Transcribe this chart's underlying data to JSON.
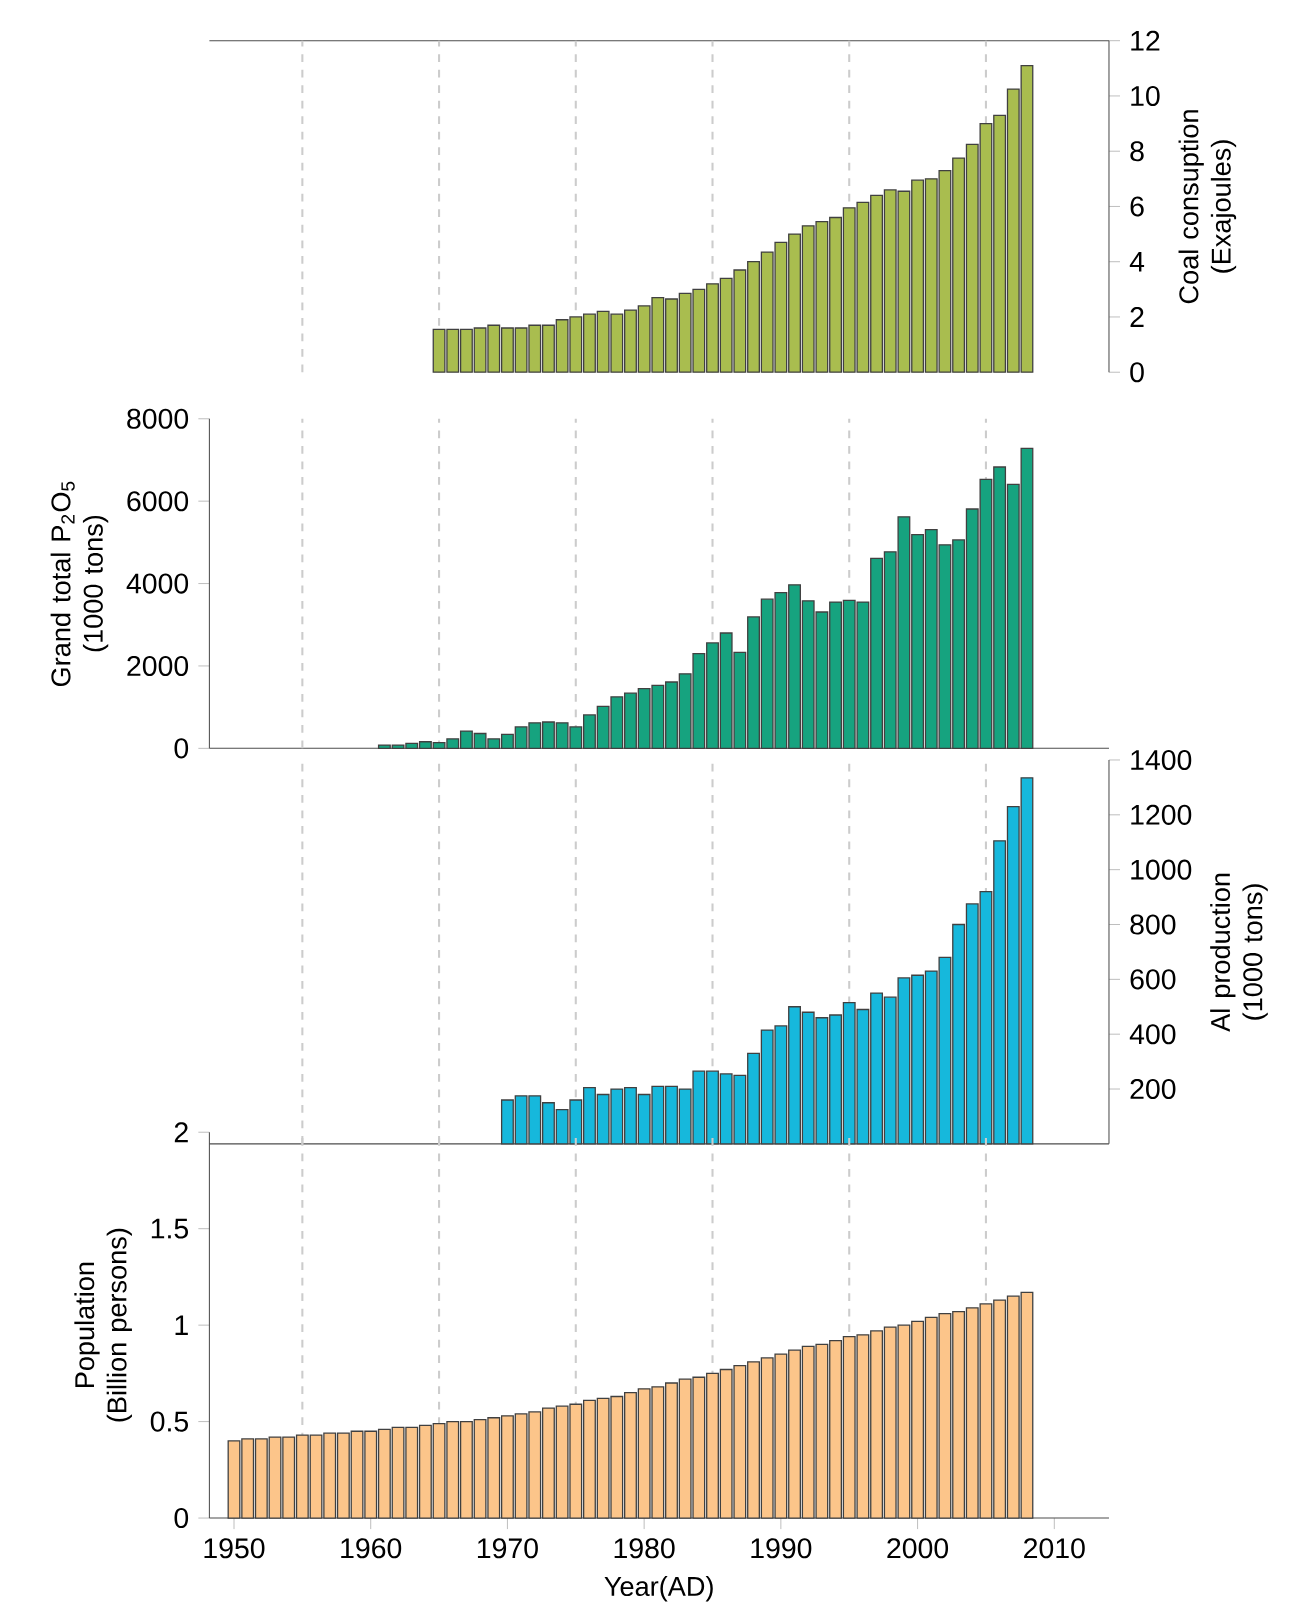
{
  "chart_data": [
    {
      "type": "bar",
      "ylabel": "Coal consuption (Exajoules)",
      "color": "#a9bd4f",
      "xlim": [
        1948.2,
        2014
      ],
      "ylim": [
        0,
        12
      ],
      "yticks": [
        0,
        2,
        4,
        6,
        8,
        10,
        12
      ],
      "tick_labels": "y",
      "x": [
        1965,
        1966,
        1967,
        1968,
        1969,
        1970,
        1971,
        1972,
        1973,
        1974,
        1975,
        1976,
        1977,
        1978,
        1979,
        1980,
        1981,
        1982,
        1983,
        1984,
        1985,
        1986,
        1987,
        1988,
        1989,
        1990,
        1991,
        1992,
        1993,
        1994,
        1995,
        1996,
        1997,
        1998,
        1999,
        2000,
        2001,
        2002,
        2003,
        2004,
        2005,
        2006,
        2007,
        2008
      ],
      "values": [
        1.55,
        1.55,
        1.55,
        1.6,
        1.7,
        1.6,
        1.6,
        1.7,
        1.7,
        1.9,
        2.0,
        2.1,
        2.2,
        2.1,
        2.25,
        2.4,
        2.7,
        2.65,
        2.85,
        3.0,
        3.2,
        3.4,
        3.7,
        4.0,
        4.35,
        4.7,
        5.0,
        5.3,
        5.45,
        5.6,
        5.95,
        6.15,
        6.4,
        6.6,
        6.55,
        6.95,
        7.0,
        7.3,
        7.75,
        8.25,
        9.0,
        9.3,
        10.25,
        11.1
      ],
      "ref_lines": [
        {
          "axis": "x",
          "value": 1955,
          "color": "#cccccc",
          "line_style": "dashed"
        },
        {
          "axis": "x",
          "value": 1965,
          "color": "#cccccc",
          "line_style": "dashed"
        },
        {
          "axis": "x",
          "value": 1975,
          "color": "#cccccc",
          "line_style": "dashed"
        },
        {
          "axis": "x",
          "value": 1985,
          "color": "#cccccc",
          "line_style": "dashed"
        },
        {
          "axis": "x",
          "value": 1995,
          "color": "#cccccc",
          "line_style": "dashed"
        },
        {
          "axis": "x",
          "value": 2005,
          "color": "#cccccc",
          "line_style": "dashed"
        }
      ]
    },
    {
      "type": "bar",
      "ylabel": "Grand total P$_{2}$O$_{5}$ (1000 tons)",
      "color": "#16a37f",
      "xlim": [
        1948.2,
        2014
      ],
      "ylim": [
        0,
        8000
      ],
      "yticks": [
        0,
        2000,
        4000,
        6000,
        8000
      ],
      "tick_labels": "y",
      "x": [
        1961,
        1962,
        1963,
        1964,
        1965,
        1966,
        1967,
        1968,
        1969,
        1970,
        1971,
        1972,
        1973,
        1974,
        1975,
        1976,
        1977,
        1978,
        1979,
        1980,
        1981,
        1982,
        1983,
        1984,
        1985,
        1986,
        1987,
        1988,
        1989,
        1990,
        1991,
        1992,
        1993,
        1994,
        1995,
        1996,
        1997,
        1998,
        1999,
        2000,
        2001,
        2002,
        2003,
        2004,
        2005,
        2006,
        2007,
        2008
      ],
      "values": [
        80,
        80,
        120,
        160,
        140,
        230,
        420,
        360,
        230,
        340,
        520,
        620,
        640,
        620,
        520,
        810,
        1020,
        1250,
        1340,
        1450,
        1530,
        1610,
        1810,
        2300,
        2560,
        2800,
        2330,
        3190,
        3620,
        3780,
        3970,
        3580,
        3310,
        3550,
        3590,
        3550,
        4610,
        4770,
        5620,
        5190,
        5310,
        4940,
        5060,
        5810,
        6530,
        6830,
        6410,
        7280
      ],
      "ref_lines": [
        {
          "axis": "x",
          "value": 1955,
          "color": "#cccccc",
          "line_style": "dashed"
        },
        {
          "axis": "x",
          "value": 1965,
          "color": "#cccccc",
          "line_style": "dashed"
        },
        {
          "axis": "x",
          "value": 1975,
          "color": "#cccccc",
          "line_style": "dashed"
        },
        {
          "axis": "x",
          "value": 1985,
          "color": "#cccccc",
          "line_style": "dashed"
        },
        {
          "axis": "x",
          "value": 1995,
          "color": "#cccccc",
          "line_style": "dashed"
        },
        {
          "axis": "x",
          "value": 2005,
          "color": "#cccccc",
          "line_style": "dashed"
        }
      ]
    },
    {
      "type": "bar",
      "ylabel": "Al production (1000 tons)",
      "color": "#16b8dc",
      "xlim": [
        1948.2,
        2014
      ],
      "ylim": [
        0,
        1400
      ],
      "yticks": [
        200,
        400,
        600,
        800,
        1000,
        1200,
        1400
      ],
      "tick_labels": "y",
      "x": [
        1970,
        1971,
        1972,
        1973,
        1974,
        1975,
        1976,
        1977,
        1978,
        1979,
        1980,
        1981,
        1982,
        1983,
        1984,
        1985,
        1986,
        1987,
        1988,
        1989,
        1990,
        1991,
        1992,
        1993,
        1994,
        1995,
        1996,
        1997,
        1998,
        1999,
        2000,
        2001,
        2002,
        2003,
        2004,
        2005,
        2006,
        2007,
        2008
      ],
      "values": [
        160,
        175,
        175,
        150,
        125,
        160,
        205,
        180,
        200,
        205,
        180,
        210,
        210,
        200,
        265,
        265,
        255,
        250,
        330,
        415,
        430,
        500,
        480,
        460,
        470,
        515,
        490,
        550,
        535,
        605,
        615,
        630,
        680,
        800,
        875,
        920,
        1105,
        1230,
        1335
      ],
      "ref_lines": [
        {
          "axis": "x",
          "value": 1955,
          "color": "#cccccc",
          "line_style": "dashed"
        },
        {
          "axis": "x",
          "value": 1965,
          "color": "#cccccc",
          "line_style": "dashed"
        },
        {
          "axis": "x",
          "value": 1975,
          "color": "#cccccc",
          "line_style": "dashed"
        },
        {
          "axis": "x",
          "value": 1985,
          "color": "#cccccc",
          "line_style": "dashed"
        },
        {
          "axis": "x",
          "value": 1995,
          "color": "#cccccc",
          "line_style": "dashed"
        },
        {
          "axis": "x",
          "value": 2005,
          "color": "#cccccc",
          "line_style": "dashed"
        }
      ]
    },
    {
      "type": "bar",
      "xlabel": "Year(AD)",
      "ylabel": "Population (Billion persons)",
      "color": "#fcc58a",
      "xlim": [
        1948.2,
        2014
      ],
      "ylim": [
        0,
        2
      ],
      "yticks": [
        0,
        0.5,
        1,
        1.5,
        2
      ],
      "xticks": [
        1950,
        1960,
        1970,
        1980,
        1990,
        2000,
        2010
      ],
      "x": [
        1950,
        1951,
        1952,
        1953,
        1954,
        1955,
        1956,
        1957,
        1958,
        1959,
        1960,
        1961,
        1962,
        1963,
        1964,
        1965,
        1966,
        1967,
        1968,
        1969,
        1970,
        1971,
        1972,
        1973,
        1974,
        1975,
        1976,
        1977,
        1978,
        1979,
        1980,
        1981,
        1982,
        1983,
        1984,
        1985,
        1986,
        1987,
        1988,
        1989,
        1990,
        1991,
        1992,
        1993,
        1994,
        1995,
        1996,
        1997,
        1998,
        1999,
        2000,
        2001,
        2002,
        2003,
        2004,
        2005,
        2006,
        2007,
        2008
      ],
      "values": [
        0.4,
        0.41,
        0.41,
        0.42,
        0.42,
        0.43,
        0.43,
        0.44,
        0.44,
        0.45,
        0.45,
        0.46,
        0.47,
        0.47,
        0.48,
        0.49,
        0.5,
        0.5,
        0.51,
        0.52,
        0.53,
        0.54,
        0.55,
        0.57,
        0.58,
        0.59,
        0.61,
        0.62,
        0.63,
        0.65,
        0.67,
        0.68,
        0.7,
        0.72,
        0.73,
        0.75,
        0.77,
        0.79,
        0.81,
        0.83,
        0.85,
        0.87,
        0.89,
        0.9,
        0.92,
        0.94,
        0.95,
        0.97,
        0.99,
        1.0,
        1.02,
        1.04,
        1.06,
        1.07,
        1.09,
        1.11,
        1.13,
        1.15,
        1.17
      ],
      "ref_lines": [
        {
          "axis": "x",
          "value": 1955,
          "color": "#cccccc",
          "line_style": "dashed"
        },
        {
          "axis": "x",
          "value": 1965,
          "color": "#cccccc",
          "line_style": "dashed"
        },
        {
          "axis": "x",
          "value": 1975,
          "color": "#cccccc",
          "line_style": "dashed"
        },
        {
          "axis": "x",
          "value": 1985,
          "color": "#cccccc",
          "line_style": "dashed"
        },
        {
          "axis": "x",
          "value": 1995,
          "color": "#cccccc",
          "line_style": "dashed"
        },
        {
          "axis": "x",
          "value": 2005,
          "color": "#cccccc",
          "line_style": "dashed"
        }
      ]
    }
  ]
}
